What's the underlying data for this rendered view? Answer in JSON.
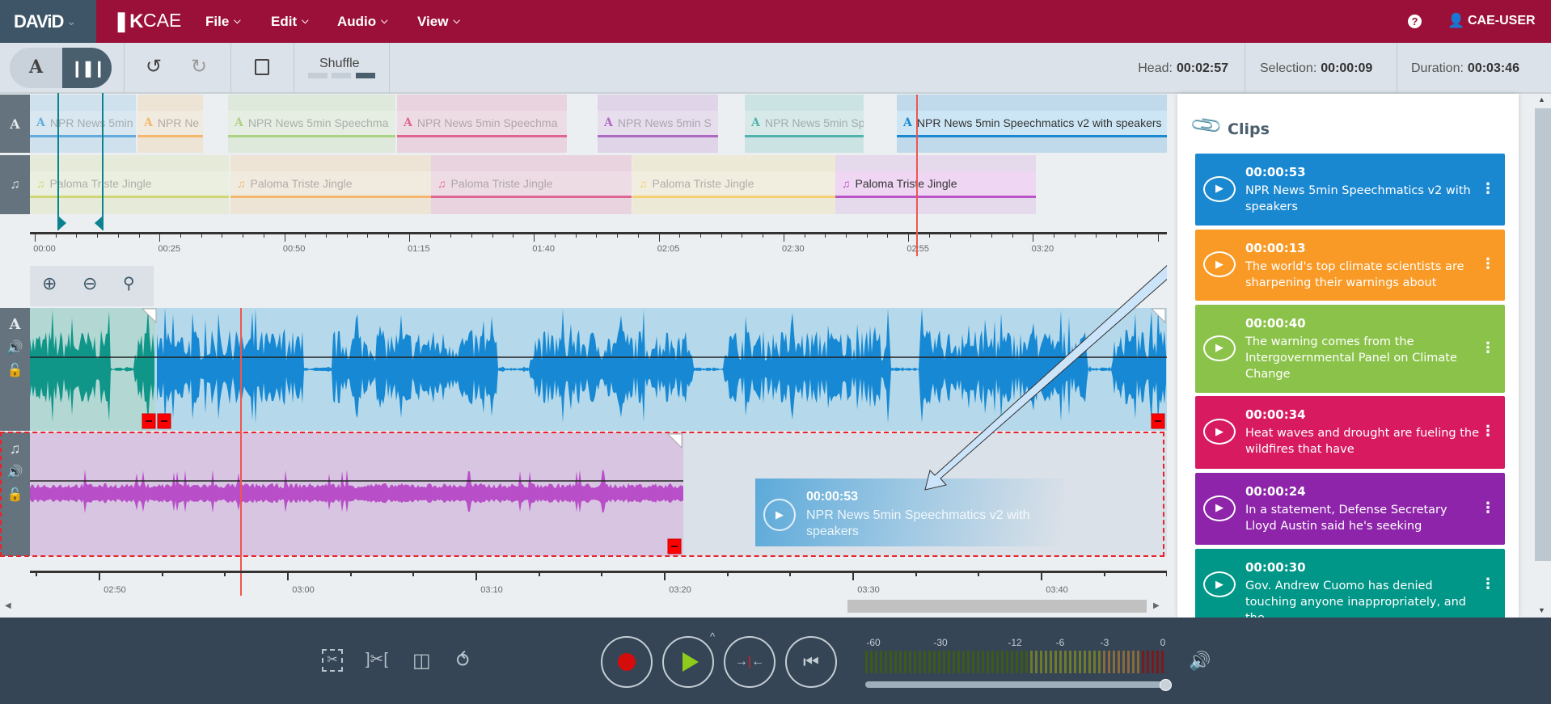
{
  "header": {
    "brand": "DAViD",
    "app_name": "CAE",
    "menus": [
      "File",
      "Edit",
      "Audio",
      "View"
    ],
    "user": "CAE-USER"
  },
  "toolbar": {
    "mode_text": "A",
    "shuffle": "Shuffle",
    "head_label": "Head:",
    "head": "00:02:57",
    "selection_label": "Selection:",
    "selection": "00:00:09",
    "duration_label": "Duration:",
    "duration": "00:03:46"
  },
  "overview": {
    "track_a_clips": [
      {
        "label": "NPR News 5min",
        "color": "#1a88d1"
      },
      {
        "label": "NPR Ne",
        "color": "#f99a26"
      },
      {
        "label": "NPR News 5min Speechma",
        "color": "#8bc34a"
      },
      {
        "label": "NPR News 5min Speechma",
        "color": "#d81b60"
      },
      {
        "label": "NPR News 5min S",
        "color": "#8e24aa"
      },
      {
        "label": "NPR News 5min Speech",
        "color": "#009688"
      },
      {
        "label": "NPR News 5min Speechmatics v2 with speakers",
        "color": "#1a88d1"
      }
    ],
    "music_clips": [
      {
        "label": "Paloma Triste Jingle",
        "color": "#c0ca33"
      },
      {
        "label": "Paloma Triste Jingle",
        "color": "#f99a26"
      },
      {
        "label": "Paloma Triste Jingle",
        "color": "#d81b60"
      },
      {
        "label": "Paloma Triste Jingle",
        "color": "#fbc02d"
      },
      {
        "label": "Paloma Triste Jingle",
        "color": "#ba55c8"
      }
    ],
    "ruler": [
      "00:00",
      "00:25",
      "00:50",
      "01:15",
      "01:40",
      "02:05",
      "02:30",
      "02:55",
      "03:20"
    ]
  },
  "detail": {
    "ruler": [
      "02:50",
      "03:00",
      "03:10",
      "03:20",
      "03:30",
      "03:40"
    ]
  },
  "drag_ghost": {
    "time": "00:00:53",
    "title": "NPR News 5min Speechmatics v2 with speakers"
  },
  "clips": {
    "title": "Clips",
    "items": [
      {
        "time": "00:00:53",
        "text": "NPR News 5min Speechmatics v2 with speakers",
        "color": "#1a88d1"
      },
      {
        "time": "00:00:13",
        "text": "The world's top climate scientists are sharpening their warnings about",
        "color": "#f99a26"
      },
      {
        "time": "00:00:40",
        "text": "The warning comes from the Intergovernmental Panel on Climate Change",
        "color": "#8bc34a"
      },
      {
        "time": "00:00:34",
        "text": "Heat waves and drought are fueling the wildfires that have",
        "color": "#d81b60"
      },
      {
        "time": "00:00:24",
        "text": "In a statement, Defense Secretary Lloyd Austin said he's seeking",
        "color": "#8e24aa"
      },
      {
        "time": "00:00:30",
        "text": "Gov. Andrew Cuomo has denied touching anyone inappropriately, and the",
        "color": "#009688"
      }
    ]
  },
  "meter": {
    "labels": [
      "-60",
      "-30",
      "-12",
      "-6",
      "-3",
      "0"
    ],
    "volume_percent": 100
  }
}
